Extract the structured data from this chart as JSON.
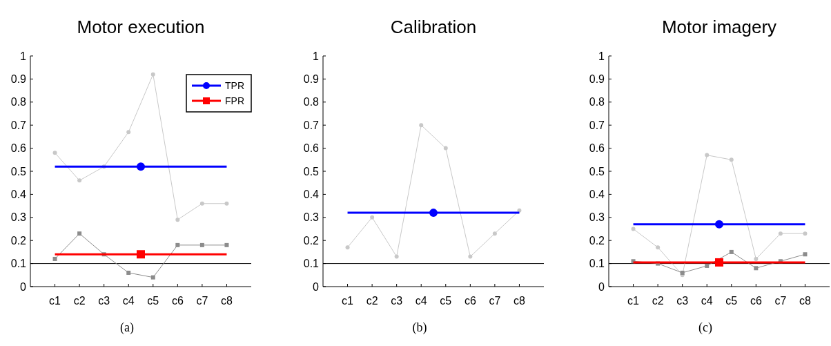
{
  "chart_data": [
    {
      "type": "line",
      "title": "Motor execution",
      "categories": [
        "c1",
        "c2",
        "c3",
        "c4",
        "c5",
        "c6",
        "c7",
        "c8"
      ],
      "ylim": [
        0,
        1
      ],
      "yticks": [
        0,
        0.1,
        0.2,
        0.3,
        0.4,
        0.5,
        0.6,
        0.7,
        0.8,
        0.9,
        1
      ],
      "legend": "top right",
      "annotations": [
        "(a)"
      ],
      "series": [
        {
          "color": "#c8c8c8",
          "marker": "circle",
          "values": [
            0.58,
            0.46,
            0.52,
            0.67,
            0.92,
            0.29,
            0.36,
            0.36
          ]
        },
        {
          "color": "#8c8c8c",
          "marker": "square",
          "values": [
            0.12,
            0.23,
            0.14,
            0.06,
            0.04,
            0.18,
            0.18,
            0.18
          ]
        },
        {
          "name": "TPR",
          "color": "#0000ff",
          "marker": "none",
          "values": [
            0.52,
            0.52,
            0.52,
            0.52,
            0.52,
            0.52,
            0.52,
            0.52
          ]
        },
        {
          "name": "FPR",
          "color": "#ff0000",
          "marker": "none",
          "values": [
            0.14,
            0.14,
            0.14,
            0.14,
            0.14,
            0.14,
            0.14,
            0.14
          ]
        }
      ],
      "ref_lines": [
        {
          "axis": "y",
          "value": 0.1,
          "color": "#000000"
        }
      ]
    },
    {
      "type": "line",
      "title": "Calibration",
      "categories": [
        "c1",
        "c2",
        "c3",
        "c4",
        "c5",
        "c6",
        "c7",
        "c8"
      ],
      "ylim": [
        0,
        1
      ],
      "yticks": [
        0,
        0.1,
        0.2,
        0.3,
        0.4,
        0.5,
        0.6,
        0.7,
        0.8,
        0.9,
        1
      ],
      "annotations": [
        "(b)"
      ],
      "series": [
        {
          "color": "#c8c8c8",
          "marker": "circle",
          "values": [
            0.17,
            0.3,
            0.13,
            0.7,
            0.6,
            0.13,
            0.23,
            0.33
          ]
        },
        {
          "color": "#0000ff",
          "marker": "none",
          "values": [
            0.32,
            0.32,
            0.32,
            0.32,
            0.32,
            0.32,
            0.32,
            0.32
          ]
        }
      ],
      "ref_lines": [
        {
          "axis": "y",
          "value": 0.1,
          "color": "#000000"
        }
      ]
    },
    {
      "type": "line",
      "title": "Motor imagery",
      "categories": [
        "c1",
        "c2",
        "c3",
        "c4",
        "c5",
        "c6",
        "c7",
        "c8"
      ],
      "ylim": [
        0,
        1
      ],
      "yticks": [
        0,
        0.1,
        0.2,
        0.3,
        0.4,
        0.5,
        0.6,
        0.7,
        0.8,
        0.9,
        1
      ],
      "annotations": [
        "(c)"
      ],
      "series": [
        {
          "color": "#c8c8c8",
          "marker": "circle",
          "values": [
            0.25,
            0.17,
            0.05,
            0.57,
            0.55,
            0.12,
            0.23,
            0.23
          ]
        },
        {
          "color": "#8c8c8c",
          "marker": "square",
          "values": [
            0.11,
            0.1,
            0.06,
            0.09,
            0.15,
            0.08,
            0.11,
            0.14
          ]
        },
        {
          "color": "#0000ff",
          "marker": "none",
          "values": [
            0.27,
            0.27,
            0.27,
            0.27,
            0.27,
            0.27,
            0.27,
            0.27
          ]
        },
        {
          "color": "#ff0000",
          "marker": "none",
          "values": [
            0.105,
            0.105,
            0.105,
            0.105,
            0.105,
            0.105,
            0.105,
            0.105
          ]
        }
      ],
      "ref_lines": [
        {
          "axis": "y",
          "value": 0.1,
          "color": "#000000"
        }
      ]
    }
  ]
}
